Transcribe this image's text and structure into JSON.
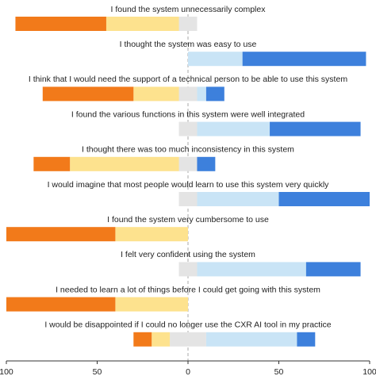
{
  "chart_data": {
    "type": "diverging_bar",
    "categories": [
      "I found the system unnecessarily complex",
      "I thought the system was easy to use",
      "I think that I would need the support of a technical person to be able to use this system",
      "I found the various functions in this system were well integrated",
      "I thought there was too much inconsistency in this system",
      "I would imagine that most people would learn to use this system very quickly",
      "I found the system very cumbersome to use",
      "I felt very confident using the system",
      "I needed to learn a lot of things before I could get going with this system",
      "I would be disappointed if I could no longer use the CXR AI tool in my practice"
    ],
    "series": [
      {
        "color": "#f27a1a",
        "side": "left",
        "values": [
          50,
          0,
          50,
          0,
          20,
          0,
          60,
          0,
          60,
          10
        ]
      },
      {
        "color": "#fde28e",
        "side": "left",
        "values": [
          40,
          0,
          25,
          0,
          60,
          0,
          40,
          0,
          40,
          10
        ]
      },
      {
        "color": "#e4e4e4",
        "side": "center",
        "values": [
          10,
          0,
          10,
          10,
          10,
          10,
          0,
          10,
          0,
          20
        ]
      },
      {
        "color": "#c9e4f6",
        "side": "right",
        "values": [
          0,
          30,
          5,
          40,
          0,
          45,
          0,
          60,
          0,
          50
        ]
      },
      {
        "color": "#3d80dc",
        "side": "right",
        "values": [
          0,
          68,
          10,
          50,
          10,
          50,
          0,
          30,
          0,
          10
        ]
      }
    ],
    "xlim": [
      -100,
      100
    ],
    "xticks": [
      {
        "value": -100,
        "label": "100"
      },
      {
        "value": -50,
        "label": "50"
      },
      0,
      50,
      100
    ]
  }
}
